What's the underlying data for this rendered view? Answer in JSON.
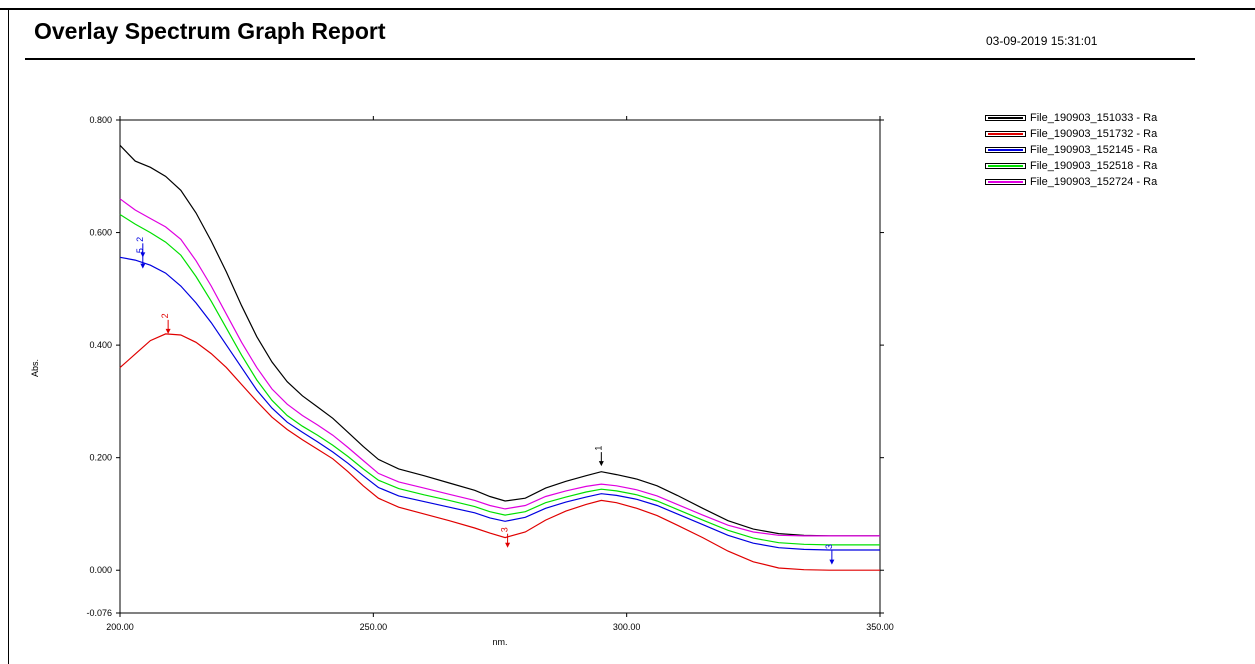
{
  "header": {
    "title": "Overlay Spectrum Graph Report",
    "datetime": "03-09-2019  15:31:01"
  },
  "legend": {
    "items": [
      {
        "label": "File_190903_151033 - Ra",
        "color": "#000000"
      },
      {
        "label": "File_190903_151732 - Ra",
        "color": "#e00000"
      },
      {
        "label": "File_190903_152145 - Ra",
        "color": "#0000e0"
      },
      {
        "label": "File_190903_152518 - Ra",
        "color": "#00e000"
      },
      {
        "label": "File_190903_152724 - Ra",
        "color": "#e000e0"
      }
    ]
  },
  "chart_data": {
    "type": "line",
    "xlabel": "nm.",
    "ylabel": "Abs.",
    "xlim": [
      200,
      350
    ],
    "ylim": [
      -0.076,
      0.8
    ],
    "x_ticks": [
      {
        "value": 200,
        "label": "200.00"
      },
      {
        "value": 250,
        "label": "250.00"
      },
      {
        "value": 300,
        "label": "300.00"
      },
      {
        "value": 350,
        "label": "350.00"
      }
    ],
    "y_ticks": [
      {
        "value": 0.8,
        "label": "0.800"
      },
      {
        "value": 0.6,
        "label": "0.600"
      },
      {
        "value": 0.4,
        "label": "0.400"
      },
      {
        "value": 0.2,
        "label": "0.200"
      },
      {
        "value": 0.0,
        "label": "0.000"
      },
      {
        "value": -0.076,
        "label": "-0.076"
      }
    ],
    "grid": false,
    "series": [
      {
        "name": "File_190903_151033 - Ra",
        "color": "#000000",
        "points": [
          [
            200,
            0.755
          ],
          [
            203,
            0.727
          ],
          [
            206,
            0.716
          ],
          [
            209,
            0.7
          ],
          [
            212,
            0.675
          ],
          [
            215,
            0.635
          ],
          [
            218,
            0.585
          ],
          [
            221,
            0.53
          ],
          [
            224,
            0.47
          ],
          [
            227,
            0.415
          ],
          [
            230,
            0.37
          ],
          [
            233,
            0.335
          ],
          [
            236,
            0.31
          ],
          [
            239,
            0.29
          ],
          [
            242,
            0.27
          ],
          [
            245,
            0.245
          ],
          [
            248,
            0.22
          ],
          [
            251,
            0.197
          ],
          [
            255,
            0.18
          ],
          [
            260,
            0.168
          ],
          [
            265,
            0.155
          ],
          [
            270,
            0.142
          ],
          [
            273,
            0.131
          ],
          [
            276,
            0.123
          ],
          [
            280,
            0.128
          ],
          [
            284,
            0.146
          ],
          [
            288,
            0.158
          ],
          [
            292,
            0.168
          ],
          [
            295,
            0.175
          ],
          [
            298,
            0.17
          ],
          [
            302,
            0.162
          ],
          [
            306,
            0.15
          ],
          [
            310,
            0.133
          ],
          [
            315,
            0.11
          ],
          [
            320,
            0.088
          ],
          [
            325,
            0.073
          ],
          [
            330,
            0.065
          ],
          [
            335,
            0.062
          ],
          [
            340,
            0.061
          ],
          [
            345,
            0.061
          ],
          [
            350,
            0.061
          ]
        ]
      },
      {
        "name": "File_190903_151732 - Ra",
        "color": "#e00000",
        "points": [
          [
            200,
            0.36
          ],
          [
            203,
            0.384
          ],
          [
            206,
            0.408
          ],
          [
            209,
            0.42
          ],
          [
            212,
            0.418
          ],
          [
            215,
            0.405
          ],
          [
            218,
            0.385
          ],
          [
            221,
            0.36
          ],
          [
            224,
            0.33
          ],
          [
            227,
            0.3
          ],
          [
            230,
            0.272
          ],
          [
            233,
            0.25
          ],
          [
            236,
            0.232
          ],
          [
            239,
            0.215
          ],
          [
            242,
            0.198
          ],
          [
            245,
            0.175
          ],
          [
            248,
            0.15
          ],
          [
            251,
            0.128
          ],
          [
            255,
            0.112
          ],
          [
            260,
            0.1
          ],
          [
            265,
            0.088
          ],
          [
            270,
            0.075
          ],
          [
            273,
            0.066
          ],
          [
            276,
            0.058
          ],
          [
            280,
            0.068
          ],
          [
            284,
            0.089
          ],
          [
            288,
            0.105
          ],
          [
            292,
            0.117
          ],
          [
            295,
            0.124
          ],
          [
            298,
            0.12
          ],
          [
            302,
            0.11
          ],
          [
            306,
            0.097
          ],
          [
            310,
            0.08
          ],
          [
            315,
            0.058
          ],
          [
            320,
            0.034
          ],
          [
            325,
            0.015
          ],
          [
            330,
            0.004
          ],
          [
            335,
            0.001
          ],
          [
            340,
            0.0
          ],
          [
            345,
            0.0
          ],
          [
            350,
            0.0
          ]
        ]
      },
      {
        "name": "File_190903_152145 - Ra",
        "color": "#0000e0",
        "points": [
          [
            200,
            0.556
          ],
          [
            203,
            0.551
          ],
          [
            206,
            0.542
          ],
          [
            209,
            0.528
          ],
          [
            212,
            0.505
          ],
          [
            215,
            0.475
          ],
          [
            218,
            0.44
          ],
          [
            221,
            0.4
          ],
          [
            224,
            0.36
          ],
          [
            227,
            0.32
          ],
          [
            230,
            0.288
          ],
          [
            233,
            0.263
          ],
          [
            236,
            0.245
          ],
          [
            239,
            0.228
          ],
          [
            242,
            0.21
          ],
          [
            245,
            0.19
          ],
          [
            248,
            0.168
          ],
          [
            251,
            0.147
          ],
          [
            255,
            0.132
          ],
          [
            260,
            0.122
          ],
          [
            265,
            0.112
          ],
          [
            270,
            0.102
          ],
          [
            273,
            0.093
          ],
          [
            276,
            0.087
          ],
          [
            280,
            0.094
          ],
          [
            284,
            0.11
          ],
          [
            288,
            0.121
          ],
          [
            292,
            0.13
          ],
          [
            295,
            0.136
          ],
          [
            298,
            0.133
          ],
          [
            302,
            0.126
          ],
          [
            306,
            0.115
          ],
          [
            310,
            0.1
          ],
          [
            315,
            0.081
          ],
          [
            320,
            0.062
          ],
          [
            325,
            0.048
          ],
          [
            330,
            0.04
          ],
          [
            335,
            0.037
          ],
          [
            340,
            0.036
          ],
          [
            345,
            0.036
          ],
          [
            350,
            0.036
          ]
        ]
      },
      {
        "name": "File_190903_152518 - Ra",
        "color": "#00e000",
        "points": [
          [
            200,
            0.632
          ],
          [
            203,
            0.615
          ],
          [
            206,
            0.6
          ],
          [
            209,
            0.583
          ],
          [
            212,
            0.56
          ],
          [
            215,
            0.522
          ],
          [
            218,
            0.478
          ],
          [
            221,
            0.43
          ],
          [
            224,
            0.382
          ],
          [
            227,
            0.338
          ],
          [
            230,
            0.302
          ],
          [
            233,
            0.275
          ],
          [
            236,
            0.256
          ],
          [
            239,
            0.24
          ],
          [
            242,
            0.222
          ],
          [
            245,
            0.202
          ],
          [
            248,
            0.18
          ],
          [
            251,
            0.16
          ],
          [
            255,
            0.145
          ],
          [
            260,
            0.134
          ],
          [
            265,
            0.124
          ],
          [
            270,
            0.113
          ],
          [
            273,
            0.104
          ],
          [
            276,
            0.098
          ],
          [
            280,
            0.104
          ],
          [
            284,
            0.12
          ],
          [
            288,
            0.13
          ],
          [
            292,
            0.139
          ],
          [
            295,
            0.144
          ],
          [
            298,
            0.141
          ],
          [
            302,
            0.134
          ],
          [
            306,
            0.123
          ],
          [
            310,
            0.108
          ],
          [
            315,
            0.089
          ],
          [
            320,
            0.071
          ],
          [
            325,
            0.057
          ],
          [
            330,
            0.049
          ],
          [
            335,
            0.046
          ],
          [
            340,
            0.045
          ],
          [
            345,
            0.045
          ],
          [
            350,
            0.045
          ]
        ]
      },
      {
        "name": "File_190903_152724 - Ra",
        "color": "#e000e0",
        "points": [
          [
            200,
            0.66
          ],
          [
            203,
            0.64
          ],
          [
            206,
            0.625
          ],
          [
            209,
            0.61
          ],
          [
            212,
            0.588
          ],
          [
            215,
            0.55
          ],
          [
            218,
            0.505
          ],
          [
            221,
            0.455
          ],
          [
            224,
            0.405
          ],
          [
            227,
            0.36
          ],
          [
            230,
            0.322
          ],
          [
            233,
            0.295
          ],
          [
            236,
            0.275
          ],
          [
            239,
            0.258
          ],
          [
            242,
            0.24
          ],
          [
            245,
            0.218
          ],
          [
            248,
            0.195
          ],
          [
            251,
            0.172
          ],
          [
            255,
            0.157
          ],
          [
            260,
            0.146
          ],
          [
            265,
            0.135
          ],
          [
            270,
            0.124
          ],
          [
            273,
            0.115
          ],
          [
            276,
            0.109
          ],
          [
            280,
            0.115
          ],
          [
            284,
            0.131
          ],
          [
            288,
            0.141
          ],
          [
            292,
            0.149
          ],
          [
            295,
            0.153
          ],
          [
            298,
            0.15
          ],
          [
            302,
            0.143
          ],
          [
            306,
            0.132
          ],
          [
            310,
            0.117
          ],
          [
            315,
            0.098
          ],
          [
            320,
            0.08
          ],
          [
            325,
            0.068
          ],
          [
            330,
            0.062
          ],
          [
            335,
            0.061
          ],
          [
            340,
            0.061
          ],
          [
            345,
            0.061
          ],
          [
            350,
            0.061
          ]
        ]
      }
    ],
    "annotations": [
      {
        "label": "2",
        "x": 204.5,
        "y": 0.556,
        "color": "#0000e0"
      },
      {
        "label": "5",
        "x": 204.5,
        "y": 0.536,
        "color": "#0000e0"
      },
      {
        "label": "2",
        "x": 209.5,
        "y": 0.42,
        "color": "#e00000"
      },
      {
        "label": "3",
        "x": 276.5,
        "y": 0.04,
        "color": "#e00000"
      },
      {
        "label": "1",
        "x": 295,
        "y": 0.185,
        "color": "#000000"
      },
      {
        "label": "3",
        "x": 340.5,
        "y": 0.01,
        "color": "#0000e0"
      }
    ]
  }
}
